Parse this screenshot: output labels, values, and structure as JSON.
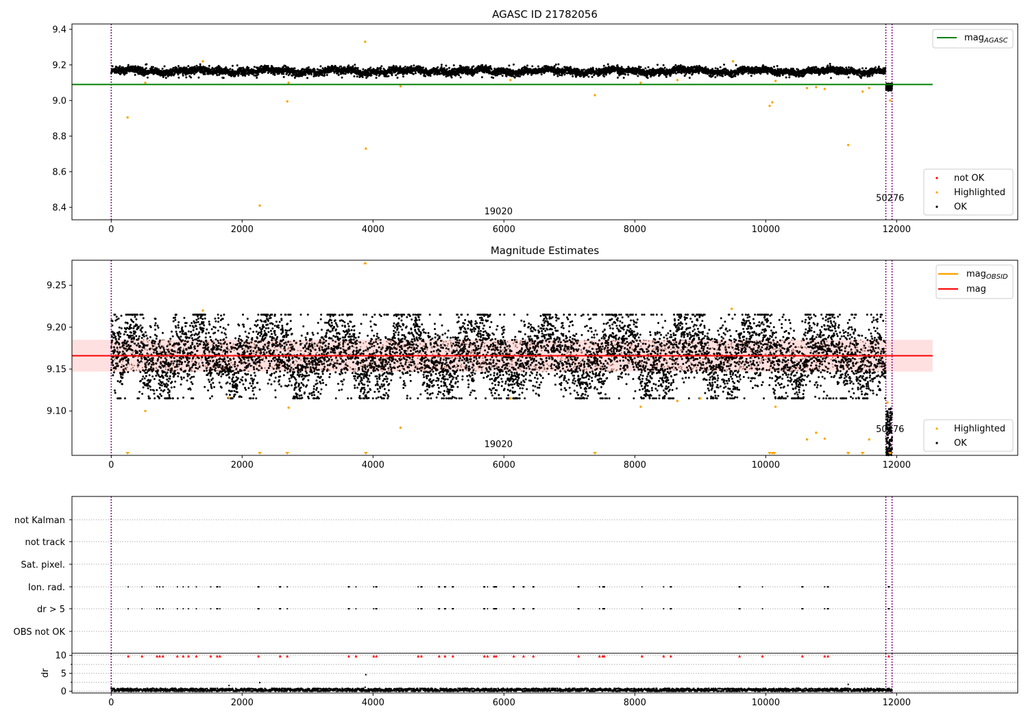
{
  "chart_data": [
    {
      "type": "scatter",
      "title": "AGASC ID 21782056",
      "xlabel": "",
      "ylabel": "",
      "xlim": [
        -600,
        13850
      ],
      "ylim": [
        8.33,
        9.43
      ],
      "xticks": [
        0,
        2000,
        4000,
        6000,
        8000,
        10000,
        12000
      ],
      "yticks": [
        8.4,
        8.6,
        8.8,
        9.0,
        9.2,
        9.4
      ],
      "ytick_labels": [
        "8.4",
        "8.6",
        "8.8",
        "9.0",
        "9.2",
        "9.4"
      ],
      "vlines": [
        0,
        11835,
        11930
      ],
      "vline_color": "#800080",
      "ok_band": {
        "center": 9.165,
        "amplitude": 0.022,
        "x_start": 0,
        "x_end": 11830
      },
      "tail_cluster": {
        "x_start": 11840,
        "x_end": 11930,
        "y_center": 9.075,
        "amplitude": 0.02
      },
      "mag_agasc_line": {
        "y": 9.09,
        "x_start": -600,
        "x_end": 12550,
        "color": "#008000"
      },
      "highlighted_points": [
        [
          250,
          8.905
        ],
        [
          520,
          9.1
        ],
        [
          1400,
          9.22
        ],
        [
          2270,
          8.41
        ],
        [
          2690,
          8.995
        ],
        [
          2710,
          9.1
        ],
        [
          3880,
          9.33
        ],
        [
          3890,
          8.73
        ],
        [
          4420,
          9.08
        ],
        [
          6100,
          9.115
        ],
        [
          7390,
          9.03
        ],
        [
          8090,
          9.1
        ],
        [
          8650,
          9.115
        ],
        [
          9500,
          9.22
        ],
        [
          10060,
          8.97
        ],
        [
          10100,
          8.99
        ],
        [
          10150,
          9.11
        ],
        [
          10630,
          9.07
        ],
        [
          10770,
          9.075
        ],
        [
          10900,
          9.065
        ],
        [
          11260,
          8.75
        ],
        [
          11480,
          9.05
        ],
        [
          11580,
          9.07
        ],
        [
          11900,
          9.0
        ]
      ],
      "text_annotations": [
        {
          "x": 6000,
          "y": 8.36,
          "text": "19020"
        },
        {
          "x": 11900,
          "y": 8.435,
          "text": "50276"
        }
      ],
      "legend_upper": {
        "placement": "upper-right",
        "entries": [
          {
            "label": "mag",
            "sub": "AGASC",
            "color": "#008000"
          }
        ]
      },
      "legend_lower": {
        "placement": "lower-right",
        "entries": [
          {
            "label": "not OK",
            "color": "#ff0000"
          },
          {
            "label": "Highlighted",
            "color": "#ffa500"
          },
          {
            "label": "OK",
            "color": "#000000"
          }
        ]
      }
    },
    {
      "type": "scatter",
      "title": "Magnitude Estimates",
      "xlabel": "",
      "ylabel": "",
      "xlim": [
        -600,
        13850
      ],
      "ylim": [
        9.047,
        9.28
      ],
      "xticks": [
        0,
        2000,
        4000,
        6000,
        8000,
        10000,
        12000
      ],
      "yticks": [
        9.1,
        9.15,
        9.2,
        9.25
      ],
      "ytick_labels": [
        "9.10",
        "9.15",
        "9.20",
        "9.25"
      ],
      "vlines": [
        0,
        11835,
        11930
      ],
      "vline_color": "#800080",
      "mag_band": {
        "low": 9.147,
        "high": 9.185,
        "x_start": -600,
        "x_end": 12550
      },
      "mag_line": {
        "y": 9.166,
        "x_start": -600,
        "x_end": 12550,
        "color": "#ff0000"
      },
      "ok_band": {
        "center": 9.166,
        "amplitude": 0.047,
        "x_start": 0,
        "x_end": 11830
      },
      "tail_cluster": {
        "x_start": 11840,
        "x_end": 11930,
        "y_center": 9.075,
        "amplitude": 0.028
      },
      "highlighted_points": [
        [
          520,
          9.1
        ],
        [
          1400,
          9.22
        ],
        [
          1800,
          9.116
        ],
        [
          2710,
          9.104
        ],
        [
          4420,
          9.08
        ],
        [
          6100,
          9.115
        ],
        [
          8090,
          9.105
        ],
        [
          8650,
          9.112
        ],
        [
          9000,
          9.115
        ],
        [
          9480,
          9.222
        ],
        [
          10150,
          9.105
        ],
        [
          10630,
          9.066
        ],
        [
          10770,
          9.074
        ],
        [
          10900,
          9.067
        ],
        [
          11580,
          9.066
        ],
        [
          11860,
          9.11
        ]
      ],
      "clipped_points": [
        250,
        2270,
        2690,
        3890,
        7390,
        10060,
        10100,
        10130,
        11260,
        11480,
        11900
      ],
      "clipped_top": [
        3880
      ],
      "text_annotations": [
        {
          "x": 6000,
          "y": 9.057,
          "text": "19020"
        },
        {
          "x": 11900,
          "y": 9.075,
          "text": "50276"
        }
      ],
      "legend_upper": {
        "placement": "upper-right",
        "entries": [
          {
            "label": "mag",
            "sub": "OBSID",
            "color": "#ffa500"
          },
          {
            "label": "mag",
            "sub": "",
            "color": "#ff0000"
          }
        ]
      },
      "legend_lower": {
        "placement": "lower-right",
        "entries": [
          {
            "label": "Highlighted",
            "color": "#ffa500"
          },
          {
            "label": "OK",
            "color": "#000000"
          }
        ]
      }
    },
    {
      "type": "scatter",
      "title": "",
      "xlabel": "",
      "ylabel": "",
      "xlim": [
        -600,
        13850
      ],
      "flag_rows": [
        "not Kalman",
        "not track",
        "Sat. pixel.",
        "Ion. rad.",
        "dr > 5",
        "OBS not OK"
      ],
      "vlines": [
        0,
        11835,
        11930
      ],
      "vline_color": "#800080",
      "flag_event_x": [
        260,
        470,
        700,
        740,
        790,
        1010,
        1100,
        1180,
        1300,
        1520,
        1620,
        1660,
        2250,
        2580,
        2690,
        3630,
        3740,
        4010,
        4050,
        4690,
        4740,
        5010,
        5100,
        5220,
        5700,
        5750,
        5850,
        5880,
        6150,
        6300,
        6450,
        7140,
        7460,
        7510,
        7530,
        8110,
        8440,
        8550,
        9600,
        9950,
        10560,
        10900,
        10950,
        11880
      ],
      "flag_rows_with_events": [
        "Ion. rad.",
        "dr > 5"
      ]
    },
    {
      "type": "scatter",
      "title": "",
      "xlabel": "",
      "ylabel": "dr",
      "xlim": [
        -600,
        13850
      ],
      "ylim": [
        -0.5,
        10.6
      ],
      "yticks": [
        0,
        5,
        10
      ],
      "ytick_labels": [
        "0",
        "5",
        "10"
      ],
      "vlines": [
        0,
        11835,
        11930
      ],
      "vline_color": "#800080",
      "dr_band": {
        "center": 0.35,
        "amplitude": 0.45,
        "x_start": 0,
        "x_end": 11930
      },
      "dr_extra_points": [
        [
          1800,
          1.6
        ],
        [
          2270,
          2.4
        ],
        [
          3890,
          4.6
        ],
        [
          3880,
          1.1
        ],
        [
          11260,
          1.9
        ]
      ],
      "dr_not_ok_x": [
        260,
        470,
        700,
        740,
        790,
        1010,
        1100,
        1180,
        1300,
        1520,
        1620,
        1660,
        2250,
        2580,
        2690,
        3630,
        3740,
        4010,
        4050,
        4690,
        4740,
        5010,
        5100,
        5220,
        5700,
        5750,
        5850,
        5880,
        6150,
        6300,
        6450,
        7140,
        7460,
        7510,
        7530,
        8110,
        8440,
        8550,
        9600,
        9950,
        10560,
        10900,
        10950,
        11880
      ],
      "dr_not_ok_y": 9.8,
      "xticks": [
        0,
        2000,
        4000,
        6000,
        8000,
        10000,
        12000
      ]
    }
  ]
}
